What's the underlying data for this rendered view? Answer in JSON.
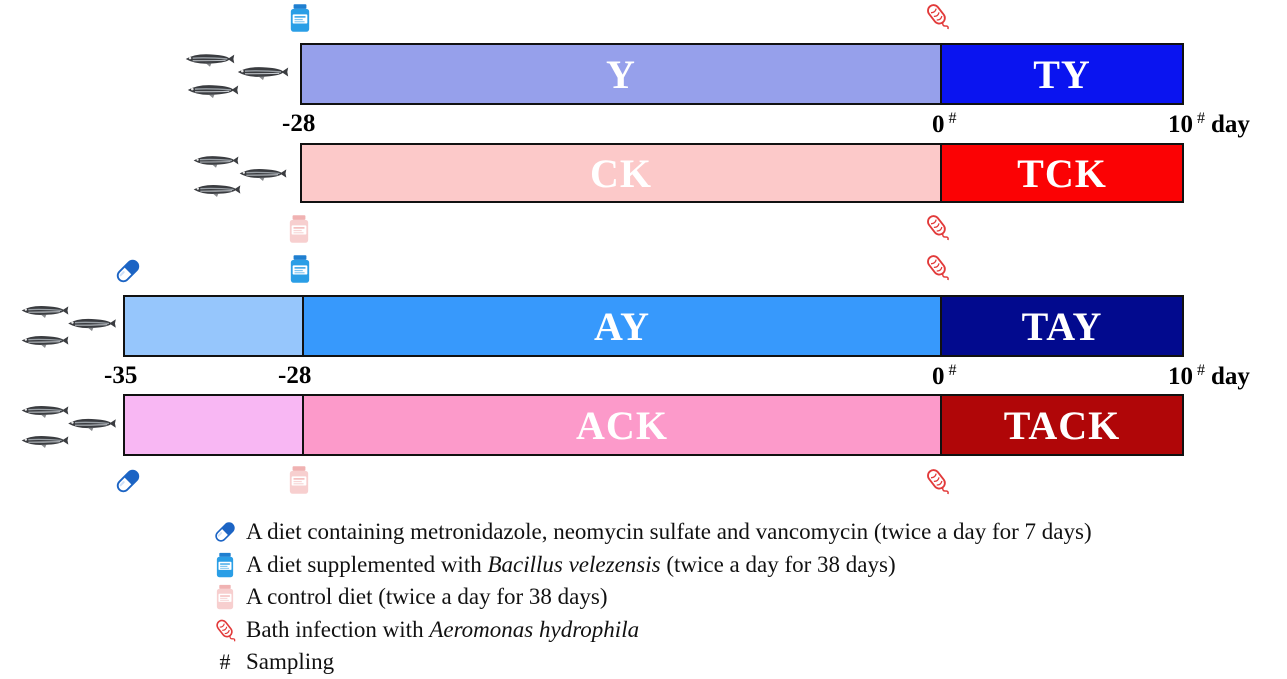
{
  "colors": {
    "Y": "#96a0eb",
    "TY": "#0a14f0",
    "CK": "#fcc9c9",
    "TCK": "#fb0204",
    "AY_pre": "#96c6fc",
    "AY": "#3799fc",
    "TAY": "#020a8e",
    "ACK_pre": "#f8b7f3",
    "ACK": "#fc9aca",
    "TACK": "#b00608",
    "pill": "#1c64c4",
    "bottle_probiotic": "#2a9ee6",
    "bottle_control": "#f4c4c4",
    "bacterium": "#e23a3a"
  },
  "icons": {
    "antibiotic": "pill-icon",
    "probiotic_diet": "probiotic-bottle-icon",
    "control_diet": "control-bottle-icon",
    "infection": "bacterium-icon",
    "fish": "zebrafish-icon"
  },
  "groups": {
    "y": {
      "label": "Y"
    },
    "ty": {
      "label": "TY"
    },
    "ck": {
      "label": "CK"
    },
    "tck": {
      "label": "TCK"
    },
    "ay": {
      "label": "AY"
    },
    "tay": {
      "label": "TAY"
    },
    "ack": {
      "label": "ACK"
    },
    "tack": {
      "label": "TACK"
    }
  },
  "axis_top": {
    "start": "-28",
    "zero": "0",
    "end": "10",
    "zero_mark": "#",
    "end_mark": "#",
    "unit": "day"
  },
  "axis_bottom": {
    "start": "-35",
    "mid": "-28",
    "zero": "0",
    "end": "10",
    "zero_mark": "#",
    "end_mark": "#",
    "unit": "day"
  },
  "legend": {
    "antibiotic": {
      "text": "A diet containing metronidazole, neomycin sulfate and vancomycin (twice a day for 7 days)"
    },
    "probiotic": {
      "before": "A diet supplemented with ",
      "italic": "Bacillus velezensis",
      "after": " (twice a day for 38 days)"
    },
    "control": {
      "text": "A control diet (twice a day for 38 days)"
    },
    "infection": {
      "before": "Bath infection with ",
      "italic": "Aeromonas hydrophila"
    },
    "sampling": {
      "symbol": "#",
      "text": "Sampling"
    }
  }
}
